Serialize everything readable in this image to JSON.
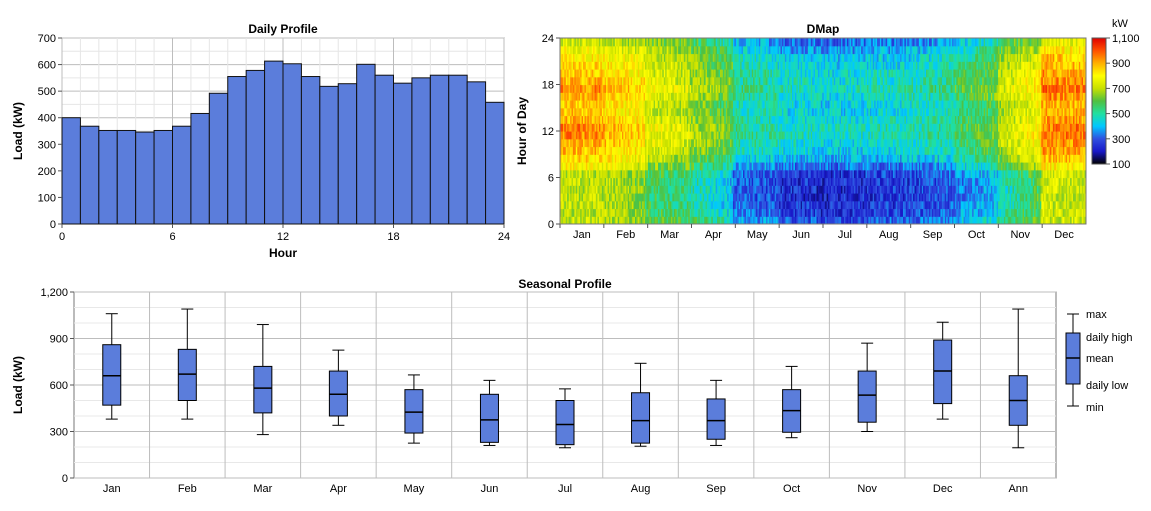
{
  "chart_data": [
    {
      "type": "bar",
      "title": "Daily Profile",
      "xlabel": "Hour",
      "ylabel": "Load (kW)",
      "x_ticks": [
        "0",
        "6",
        "12",
        "18",
        "24"
      ],
      "y_ticks": [
        "0",
        "100",
        "200",
        "300",
        "400",
        "500",
        "600",
        "700"
      ],
      "ylim": [
        0,
        700
      ],
      "xlim": [
        0,
        24
      ],
      "categories": [
        0,
        1,
        2,
        3,
        4,
        5,
        6,
        7,
        8,
        9,
        10,
        11,
        12,
        13,
        14,
        15,
        16,
        17,
        18,
        19,
        20,
        21,
        22,
        23
      ],
      "values": [
        400,
        368,
        352,
        352,
        346,
        352,
        368,
        416,
        492,
        555,
        578,
        613,
        603,
        555,
        518,
        528,
        601,
        560,
        530,
        550,
        560,
        560,
        535,
        458
      ],
      "bar_color": "#5b7ddb",
      "grid": true
    },
    {
      "type": "heatmap",
      "title": "DMap",
      "ylabel": "Hour of Day",
      "x_ticks": [
        "Jan",
        "Feb",
        "Mar",
        "Apr",
        "May",
        "Jun",
        "Jul",
        "Aug",
        "Sep",
        "Oct",
        "Nov",
        "Dec"
      ],
      "y_ticks": [
        "0",
        "6",
        "12",
        "18",
        "24"
      ],
      "ylim": [
        0,
        24
      ],
      "colorbar": {
        "unit": "kW",
        "ticks": [
          "1,100",
          "900",
          "700",
          "500",
          "300",
          "100"
        ],
        "colors": [
          "#000000",
          "#1818c8",
          "#3050e0",
          "#00c8ff",
          "#20e0a0",
          "#50c040",
          "#c8e000",
          "#ffff00",
          "#ffb000",
          "#ff5000",
          "#e00000"
        ],
        "range": [
          100,
          1100
        ]
      },
      "monthly_hourly_kW": [
        [
          700,
          700,
          700,
          700,
          700,
          700,
          700,
          800,
          850,
          880,
          900,
          950,
          950,
          900,
          880,
          870,
          900,
          950,
          900,
          880,
          850,
          820,
          780,
          720
        ],
        [
          700,
          700,
          700,
          700,
          700,
          700,
          700,
          780,
          820,
          860,
          880,
          900,
          900,
          860,
          840,
          840,
          880,
          900,
          860,
          840,
          820,
          800,
          760,
          700
        ],
        [
          600,
          580,
          570,
          560,
          560,
          560,
          580,
          650,
          700,
          740,
          760,
          780,
          780,
          740,
          720,
          720,
          760,
          780,
          760,
          740,
          740,
          720,
          700,
          640
        ],
        [
          560,
          520,
          500,
          500,
          500,
          500,
          520,
          580,
          620,
          660,
          680,
          700,
          700,
          660,
          640,
          640,
          680,
          700,
          680,
          660,
          660,
          640,
          620,
          580
        ],
        [
          380,
          330,
          310,
          300,
          300,
          300,
          320,
          380,
          440,
          480,
          500,
          520,
          520,
          500,
          480,
          480,
          520,
          540,
          520,
          520,
          500,
          480,
          440,
          400
        ],
        [
          300,
          270,
          260,
          250,
          250,
          250,
          270,
          330,
          400,
          440,
          460,
          480,
          480,
          460,
          440,
          440,
          460,
          480,
          460,
          460,
          440,
          420,
          380,
          330
        ],
        [
          280,
          250,
          240,
          230,
          230,
          230,
          250,
          310,
          380,
          420,
          440,
          460,
          460,
          440,
          420,
          420,
          440,
          460,
          440,
          440,
          420,
          400,
          360,
          310
        ],
        [
          300,
          270,
          260,
          250,
          250,
          250,
          270,
          330,
          400,
          440,
          460,
          480,
          480,
          460,
          440,
          440,
          460,
          480,
          460,
          460,
          440,
          420,
          380,
          330
        ],
        [
          310,
          280,
          270,
          260,
          260,
          260,
          280,
          340,
          410,
          450,
          470,
          490,
          490,
          470,
          450,
          450,
          480,
          500,
          480,
          470,
          450,
          430,
          390,
          340
        ],
        [
          400,
          360,
          340,
          330,
          330,
          330,
          350,
          420,
          480,
          520,
          540,
          560,
          560,
          540,
          520,
          520,
          560,
          580,
          560,
          540,
          520,
          500,
          460,
          420
        ],
        [
          520,
          480,
          460,
          460,
          460,
          460,
          480,
          560,
          620,
          660,
          680,
          700,
          700,
          680,
          660,
          660,
          700,
          720,
          700,
          680,
          660,
          640,
          600,
          560
        ],
        [
          720,
          720,
          720,
          720,
          720,
          720,
          740,
          820,
          880,
          920,
          940,
          960,
          960,
          920,
          900,
          900,
          940,
          960,
          940,
          920,
          900,
          880,
          820,
          760
        ]
      ]
    },
    {
      "type": "box",
      "title": "Seasonal Profile",
      "ylabel": "Load (kW)",
      "categories": [
        "Jan",
        "Feb",
        "Mar",
        "Apr",
        "May",
        "Jun",
        "Jul",
        "Aug",
        "Sep",
        "Oct",
        "Nov",
        "Dec",
        "Ann"
      ],
      "y_ticks": [
        "0",
        "300",
        "600",
        "900",
        "1,200"
      ],
      "ylim": [
        0,
        1200
      ],
      "box_color": "#5b7ddb",
      "series": {
        "min": [
          380,
          380,
          280,
          340,
          225,
          210,
          195,
          205,
          210,
          260,
          300,
          380,
          195
        ],
        "daily_low": [
          470,
          500,
          420,
          400,
          290,
          230,
          215,
          225,
          250,
          295,
          360,
          480,
          340
        ],
        "mean": [
          660,
          670,
          580,
          540,
          425,
          375,
          345,
          370,
          370,
          435,
          535,
          690,
          500
        ],
        "daily_high": [
          860,
          830,
          720,
          690,
          570,
          540,
          500,
          550,
          510,
          570,
          690,
          890,
          660
        ],
        "max": [
          1060,
          1090,
          990,
          825,
          665,
          630,
          575,
          740,
          630,
          720,
          870,
          1005,
          1090
        ]
      },
      "legend": {
        "position": "right",
        "labels": [
          "max",
          "daily high",
          "mean",
          "daily low",
          "min"
        ]
      }
    }
  ]
}
